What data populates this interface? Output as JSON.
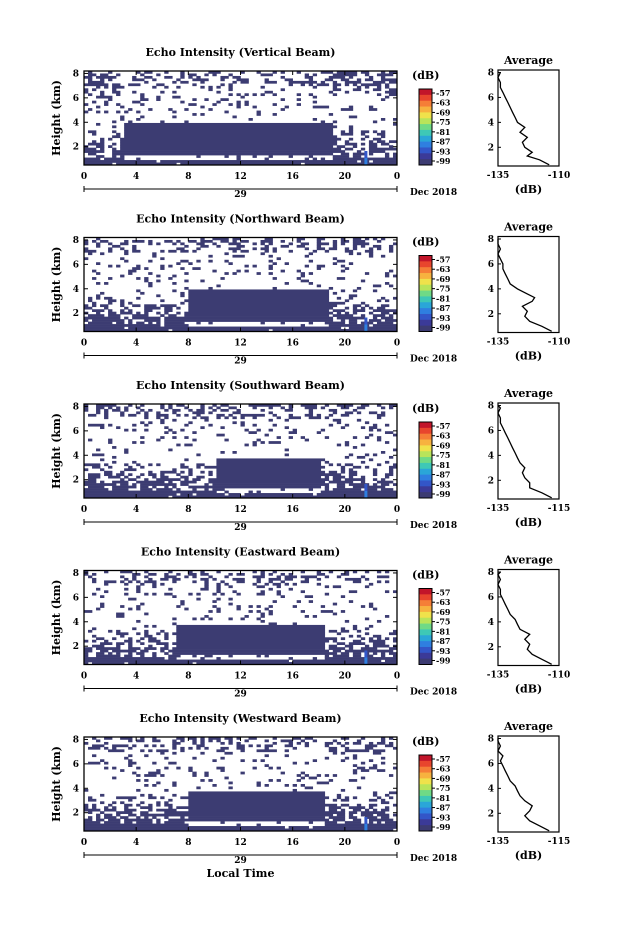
{
  "chart_data": {
    "type": "heatmap",
    "colorbar": {
      "unit": "(dB)",
      "ticks": [
        "-57",
        "-63",
        "-69",
        "-75",
        "-81",
        "-87",
        "-93",
        "-99"
      ],
      "colors": [
        "#c2152a",
        "#e8452d",
        "#f57e37",
        "#f7b23f",
        "#f0e24b",
        "#b9e45a",
        "#6fda86",
        "#3ec8b6",
        "#2aa6d8",
        "#2f7fe0",
        "#3356c8",
        "#3b3a98",
        "#3c3b72"
      ]
    },
    "x_ticks": [
      "0",
      "4",
      "8",
      "12",
      "16",
      "20",
      "0"
    ],
    "date_tick": "29",
    "date_suffix": "Dec 2018",
    "xlabel": "Local Time",
    "ylabel": "Height (km)",
    "y_ticks": [
      "2",
      "4",
      "6",
      "8"
    ],
    "ylim": [
      0.5,
      8.2
    ],
    "profile_title": "Average",
    "profile_xlabel": "(dB)",
    "panels": [
      {
        "title": "Echo Intensity (Vertical Beam)",
        "profile_ticks": [
          "-135",
          "-110"
        ],
        "profile_xlim": [
          -135,
          -110
        ],
        "profile": [
          [
            0.6,
            -114
          ],
          [
            1.0,
            -118
          ],
          [
            1.3,
            -123
          ],
          [
            1.6,
            -121
          ],
          [
            2.0,
            -124
          ],
          [
            2.4,
            -125
          ],
          [
            2.8,
            -123
          ],
          [
            3.2,
            -126
          ],
          [
            3.6,
            -124
          ],
          [
            4.0,
            -127
          ],
          [
            4.4,
            -128
          ],
          [
            4.8,
            -129
          ],
          [
            5.2,
            -130
          ],
          [
            5.6,
            -131
          ],
          [
            6.0,
            -132
          ],
          [
            6.4,
            -133
          ],
          [
            6.8,
            -134
          ],
          [
            7.2,
            -134
          ],
          [
            7.6,
            -135
          ],
          [
            8.0,
            -134
          ]
        ]
      },
      {
        "title": "Echo Intensity (Northward Beam)",
        "profile_ticks": [
          "-135",
          "-110"
        ],
        "profile_xlim": [
          -135,
          -110
        ],
        "profile": [
          [
            0.6,
            -113
          ],
          [
            1.0,
            -117
          ],
          [
            1.4,
            -122
          ],
          [
            1.8,
            -124
          ],
          [
            2.2,
            -123
          ],
          [
            2.6,
            -125
          ],
          [
            3.0,
            -121
          ],
          [
            3.3,
            -120
          ],
          [
            3.6,
            -123
          ],
          [
            4.0,
            -127
          ],
          [
            4.4,
            -130
          ],
          [
            4.8,
            -131
          ],
          [
            5.2,
            -132
          ],
          [
            5.6,
            -133
          ],
          [
            6.0,
            -133
          ],
          [
            6.4,
            -134
          ],
          [
            6.8,
            -135
          ],
          [
            7.2,
            -134
          ],
          [
            7.6,
            -135
          ],
          [
            8.0,
            -135
          ]
        ]
      },
      {
        "title": "Echo Intensity (Southward Beam)",
        "profile_ticks": [
          "-135",
          "-115"
        ],
        "profile_xlim": [
          -135,
          -110
        ],
        "profile": [
          [
            0.6,
            -113
          ],
          [
            1.0,
            -117
          ],
          [
            1.4,
            -122
          ],
          [
            1.8,
            -122
          ],
          [
            2.2,
            -124
          ],
          [
            2.6,
            -125
          ],
          [
            3.0,
            -124
          ],
          [
            3.4,
            -126
          ],
          [
            3.8,
            -127
          ],
          [
            4.2,
            -128
          ],
          [
            4.6,
            -129
          ],
          [
            5.0,
            -130
          ],
          [
            5.4,
            -131
          ],
          [
            5.8,
            -132
          ],
          [
            6.2,
            -133
          ],
          [
            6.6,
            -134
          ],
          [
            7.0,
            -134
          ],
          [
            7.4,
            -135
          ],
          [
            7.8,
            -134
          ],
          [
            8.0,
            -135
          ]
        ]
      },
      {
        "title": "Echo Intensity (Eastward Beam)",
        "profile_ticks": [
          "-135",
          "-110"
        ],
        "profile_xlim": [
          -135,
          -110
        ],
        "profile": [
          [
            0.6,
            -113
          ],
          [
            1.0,
            -117
          ],
          [
            1.4,
            -121
          ],
          [
            1.8,
            -123
          ],
          [
            2.2,
            -122
          ],
          [
            2.6,
            -124
          ],
          [
            3.0,
            -122
          ],
          [
            3.4,
            -126
          ],
          [
            3.8,
            -127
          ],
          [
            4.2,
            -128
          ],
          [
            4.6,
            -130
          ],
          [
            5.0,
            -131
          ],
          [
            5.4,
            -132
          ],
          [
            5.8,
            -133
          ],
          [
            6.2,
            -134
          ],
          [
            6.6,
            -134
          ],
          [
            7.0,
            -135
          ],
          [
            7.4,
            -134
          ],
          [
            7.8,
            -135
          ],
          [
            8.0,
            -134
          ]
        ]
      },
      {
        "title": "Echo Intensity (Westward Beam)",
        "profile_ticks": [
          "-135",
          "-115"
        ],
        "profile_xlim": [
          -135,
          -110
        ],
        "profile": [
          [
            0.6,
            -114
          ],
          [
            1.0,
            -118
          ],
          [
            1.4,
            -122
          ],
          [
            1.8,
            -124
          ],
          [
            2.2,
            -122
          ],
          [
            2.6,
            -121
          ],
          [
            3.0,
            -124
          ],
          [
            3.4,
            -126
          ],
          [
            3.8,
            -127
          ],
          [
            4.2,
            -128
          ],
          [
            4.6,
            -130
          ],
          [
            5.0,
            -131
          ],
          [
            5.4,
            -132
          ],
          [
            5.8,
            -133
          ],
          [
            6.2,
            -134
          ],
          [
            6.6,
            -133
          ],
          [
            7.0,
            -135
          ],
          [
            7.4,
            -134
          ],
          [
            7.8,
            -135
          ],
          [
            8.0,
            -135
          ]
        ]
      }
    ]
  }
}
